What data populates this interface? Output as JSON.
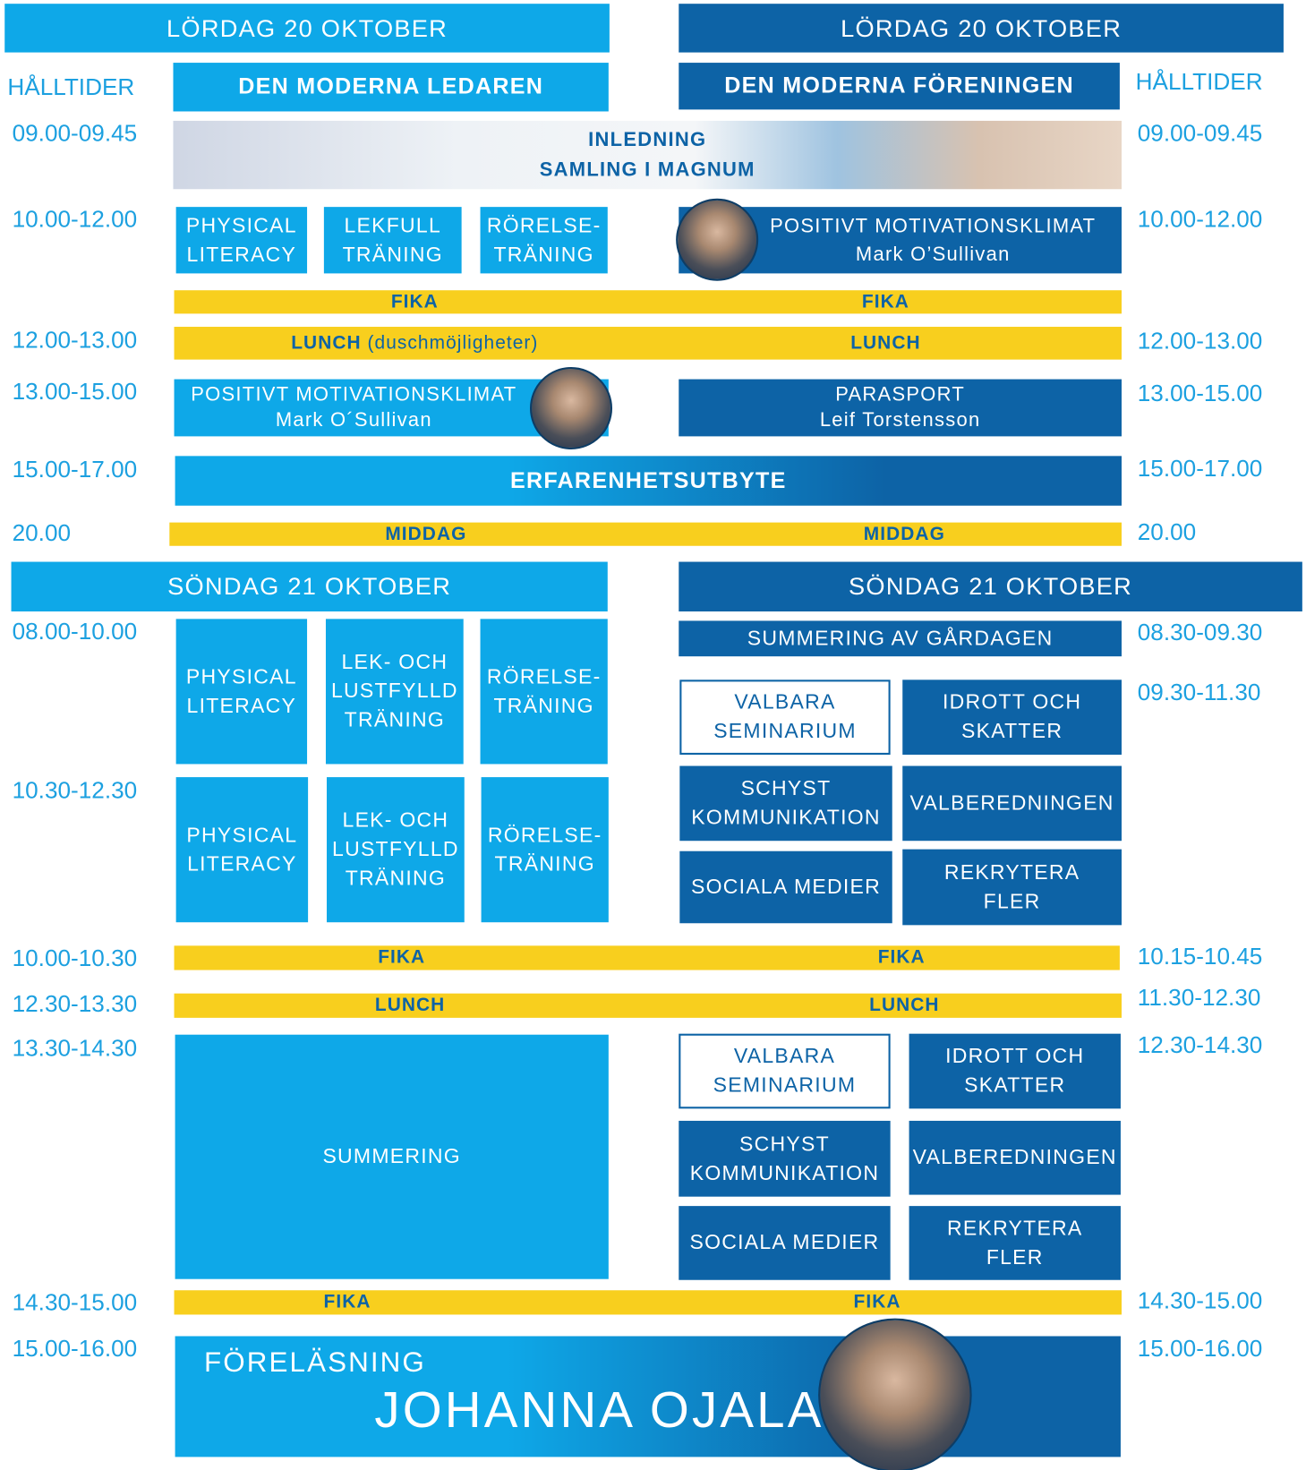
{
  "saturday": {
    "left_header": "LÖRDAG 20 OKTOBER",
    "right_header": "LÖRDAG 20 OKTOBER",
    "left_times_label": "HÅLLTIDER",
    "right_times_label": "HÅLLTIDER",
    "left_track": "DEN MODERNA LEDAREN",
    "right_track": "DEN MODERNA FÖRENINGEN",
    "left_times": [
      "09.00-09.45",
      "10.00-12.00",
      "12.00-13.00",
      "13.00-15.00",
      "15.00-17.00",
      "20.00"
    ],
    "right_times": [
      "09.00-09.45",
      "10.00-12.00",
      "12.00-13.00",
      "13.00-15.00",
      "15.00-17.00",
      "20.00"
    ],
    "intro": [
      "INLEDNING",
      "SAMLING I MAGNUM"
    ],
    "left_sessions": [
      "PHYSICAL\nLITERACY",
      "LEKFULL\nTRÄNING",
      "RÖRELSE-\nTRÄNING"
    ],
    "right_session": {
      "title": "POSITIVT MOTIVATIONSKLIMAT",
      "speaker": "Mark O’Sullivan"
    },
    "fika_left": "FIKA",
    "fika_right": "FIKA",
    "lunch_left": "LUNCH",
    "lunch_note": "(duschmöjligheter)",
    "lunch_right": "LUNCH",
    "afternoon_left": {
      "title": "POSITIVT MOTIVATIONSKLIMAT",
      "speaker": "Mark O´Sullivan"
    },
    "afternoon_right": {
      "title": "PARASPORT",
      "speaker": "Leif Torstensson"
    },
    "exchange": "ERFARENHETSUTBYTE",
    "dinner_left": "MIDDAG",
    "dinner_right": "MIDDAG"
  },
  "sunday": {
    "left_header": "SÖNDAG 21 OKTOBER",
    "right_header": "SÖNDAG 21 OKTOBER",
    "left_times": [
      "08.00-10.00",
      "10.30-12.30",
      "10.00-10.30",
      "12.30-13.30",
      "13.30-14.30",
      "14.30-15.00",
      "15.00-16.00"
    ],
    "right_times": [
      "08.30-09.30",
      "09.30-11.30",
      "10.15-10.45",
      "11.30-12.30",
      "12.30-14.30",
      "14.30-15.00",
      "15.00-16.00"
    ],
    "morning_sessions_1": [
      "PHYSICAL\nLITERACY",
      "LEK- OCH\nLUSTFYLLD\nTRÄNING",
      "RÖRELSE-\nTRÄNING"
    ],
    "morning_sessions_2": [
      "PHYSICAL\nLITERACY",
      "LEK- OCH\nLUSTFYLLD\nTRÄNING",
      "RÖRELSE-\nTRÄNING"
    ],
    "recap": "SUMMERING AV GÅRDAGEN",
    "seminars_1": [
      "VALBARA\nSEMINARIUM",
      "IDROTT OCH\nSKATTER",
      "SCHYST\nKOMMUNIKATION",
      "VALBEREDNINGEN",
      "SOCIALA MEDIER",
      "REKRYTERA\nFLER"
    ],
    "seminars_2": [
      "VALBARA\nSEMINARIUM",
      "IDROTT OCH\nSKATTER",
      "SCHYST\nKOMMUNIKATION",
      "VALBEREDNINGEN",
      "SOCIALA MEDIER",
      "REKRYTERA\nFLER"
    ],
    "fika_left": "FIKA",
    "fika_right": "FIKA",
    "lunch_left": "LUNCH",
    "lunch_right": "LUNCH",
    "summary": "SUMMERING",
    "fika2_left": "FIKA",
    "fika2_right": "FIKA",
    "lecture_label": "FÖRELÄSNING",
    "lecture_speaker": "JOHANNA OJALA"
  }
}
